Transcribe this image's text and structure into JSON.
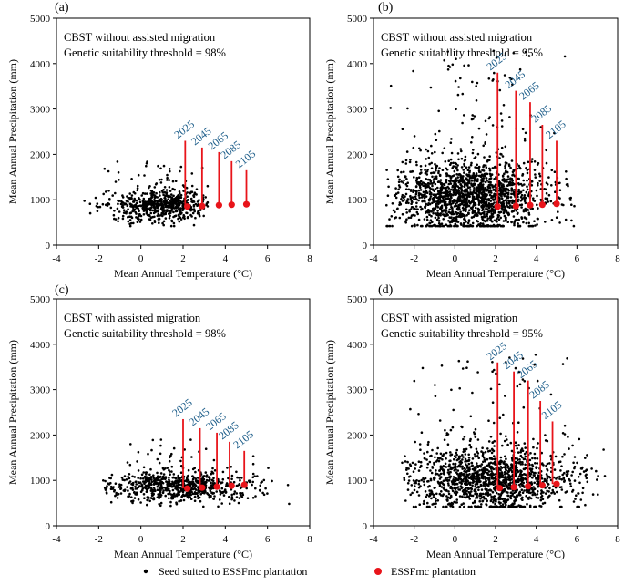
{
  "chart_data": [
    {
      "type": "scatter",
      "panel_label": "(a)",
      "title": "CBST without assisted migration",
      "subtitle": "Genetic suitability threshold = 98%",
      "xlabel": "Mean Annual Temperature (°C)",
      "ylabel": "Mean Annual Precipitation (mm)",
      "xlim": [
        -4,
        8
      ],
      "ylim": [
        0,
        5000
      ],
      "xticks": [
        "-4",
        "-2",
        "0",
        "2",
        "4",
        "6",
        "8"
      ],
      "yticks": [
        "0",
        "1000",
        "2000",
        "3000",
        "4000",
        "5000"
      ],
      "cloud": {
        "series": "Seed suited to ESSFmc plantation",
        "n": 650,
        "x_range": [
          -2.8,
          3.2
        ],
        "center": [
          0.9,
          820
        ],
        "y_spread": 200,
        "y_max": 1850
      },
      "plantation": {
        "series": "ESSFmc plantation",
        "x": [
          2.2,
          2.9,
          3.7,
          4.3,
          5.0
        ],
        "y": [
          850,
          860,
          880,
          890,
          900
        ]
      },
      "years": [
        {
          "label": "2025",
          "x": 2.1,
          "y0": 850,
          "y1": 2300
        },
        {
          "label": "2045",
          "x": 2.9,
          "y0": 860,
          "y1": 2150
        },
        {
          "label": "2065",
          "x": 3.7,
          "y0": 880,
          "y1": 2050
        },
        {
          "label": "2085",
          "x": 4.3,
          "y0": 890,
          "y1": 1850
        },
        {
          "label": "2105",
          "x": 5.0,
          "y0": 900,
          "y1": 1650
        }
      ]
    },
    {
      "type": "scatter",
      "panel_label": "(b)",
      "title": "CBST without assisted migration",
      "subtitle": "Genetic suitability threshold = 95%",
      "xlabel": "Mean Annual Temperature (°C)",
      "ylabel": "Mean Annual Precipitation (mm)",
      "xlim": [
        -4,
        8
      ],
      "ylim": [
        0,
        5000
      ],
      "xticks": [
        "-4",
        "-2",
        "0",
        "2",
        "4",
        "6",
        "8"
      ],
      "yticks": [
        "0",
        "1000",
        "2000",
        "3000",
        "4000",
        "5000"
      ],
      "cloud": {
        "series": "Seed suited to ESSFmc plantation",
        "n": 1800,
        "x_range": [
          -3.4,
          6.0
        ],
        "center": [
          0.8,
          950
        ],
        "y_spread": 450,
        "y_max": 4300
      },
      "plantation": {
        "series": "ESSFmc plantation",
        "x": [
          2.1,
          3.0,
          3.7,
          4.3,
          5.0
        ],
        "y": [
          850,
          860,
          880,
          890,
          910
        ]
      },
      "years": [
        {
          "label": "2025",
          "x": 2.1,
          "y0": 850,
          "y1": 3800
        },
        {
          "label": "2045",
          "x": 3.0,
          "y0": 860,
          "y1": 3400
        },
        {
          "label": "2065",
          "x": 3.7,
          "y0": 880,
          "y1": 3150
        },
        {
          "label": "2085",
          "x": 4.3,
          "y0": 890,
          "y1": 2650
        },
        {
          "label": "2105",
          "x": 5.0,
          "y0": 910,
          "y1": 2300
        }
      ]
    },
    {
      "type": "scatter",
      "panel_label": "(c)",
      "title": "CBST with assisted migration",
      "subtitle": "Genetic suitability threshold = 98%",
      "xlabel": "Mean Annual Temperature (°C)",
      "ylabel": "Mean Annual Precipitation (mm)",
      "xlim": [
        -4,
        8
      ],
      "ylim": [
        0,
        5000
      ],
      "xticks": [
        "-4",
        "-2",
        "0",
        "2",
        "4",
        "6",
        "8"
      ],
      "yticks": [
        "0",
        "1000",
        "2000",
        "3000",
        "4000",
        "5000"
      ],
      "cloud": {
        "series": "Seed suited to ESSFmc plantation",
        "n": 750,
        "x_range": [
          -1.8,
          7.4
        ],
        "center": [
          1.8,
          800
        ],
        "y_spread": 190,
        "y_max": 1900
      },
      "plantation": {
        "series": "ESSFmc plantation",
        "x": [
          2.2,
          2.9,
          3.6,
          4.3,
          4.9
        ],
        "y": [
          820,
          840,
          860,
          880,
          900
        ]
      },
      "years": [
        {
          "label": "2025",
          "x": 2.0,
          "y0": 820,
          "y1": 2350
        },
        {
          "label": "2045",
          "x": 2.8,
          "y0": 840,
          "y1": 2150
        },
        {
          "label": "2065",
          "x": 3.6,
          "y0": 860,
          "y1": 2050
        },
        {
          "label": "2085",
          "x": 4.2,
          "y0": 880,
          "y1": 1850
        },
        {
          "label": "2105",
          "x": 4.9,
          "y0": 900,
          "y1": 1650
        }
      ]
    },
    {
      "type": "scatter",
      "panel_label": "(d)",
      "title": "CBST with assisted migration",
      "subtitle": "Genetic suitability threshold = 95%",
      "xlabel": "Mean Annual Temperature (°C)",
      "ylabel": "Mean Annual Precipitation (mm)",
      "xlim": [
        -4,
        8
      ],
      "ylim": [
        0,
        5000
      ],
      "xticks": [
        "-4",
        "-2",
        "0",
        "2",
        "4",
        "6",
        "8"
      ],
      "yticks": [
        "0",
        "1000",
        "2000",
        "3000",
        "4000",
        "5000"
      ],
      "cloud": {
        "series": "Seed suited to ESSFmc plantation",
        "n": 1500,
        "x_range": [
          -2.6,
          7.6
        ],
        "center": [
          1.7,
          900
        ],
        "y_spread": 400,
        "y_max": 3900
      },
      "plantation": {
        "series": "ESSFmc plantation",
        "x": [
          2.2,
          2.9,
          3.6,
          4.3,
          5.0
        ],
        "y": [
          830,
          850,
          870,
          890,
          920
        ]
      },
      "years": [
        {
          "label": "2025",
          "x": 2.1,
          "y0": 830,
          "y1": 3600
        },
        {
          "label": "2045",
          "x": 2.9,
          "y0": 850,
          "y1": 3400
        },
        {
          "label": "2065",
          "x": 3.6,
          "y0": 870,
          "y1": 3200
        },
        {
          "label": "2085",
          "x": 4.2,
          "y0": 890,
          "y1": 2750
        },
        {
          "label": "2105",
          "x": 4.8,
          "y0": 920,
          "y1": 2300
        }
      ]
    }
  ],
  "legend": {
    "items": [
      {
        "label": "Seed suited to ESSFmc plantation",
        "color": "#000000",
        "marker": "small-dot"
      },
      {
        "label": "ESSFmc plantation",
        "color": "#e8141a",
        "marker": "large-dot"
      }
    ]
  },
  "colors": {
    "year_line": "#e8141a",
    "year_text": "#1f5f8b",
    "plantation": "#e8141a",
    "seed": "#000000"
  }
}
